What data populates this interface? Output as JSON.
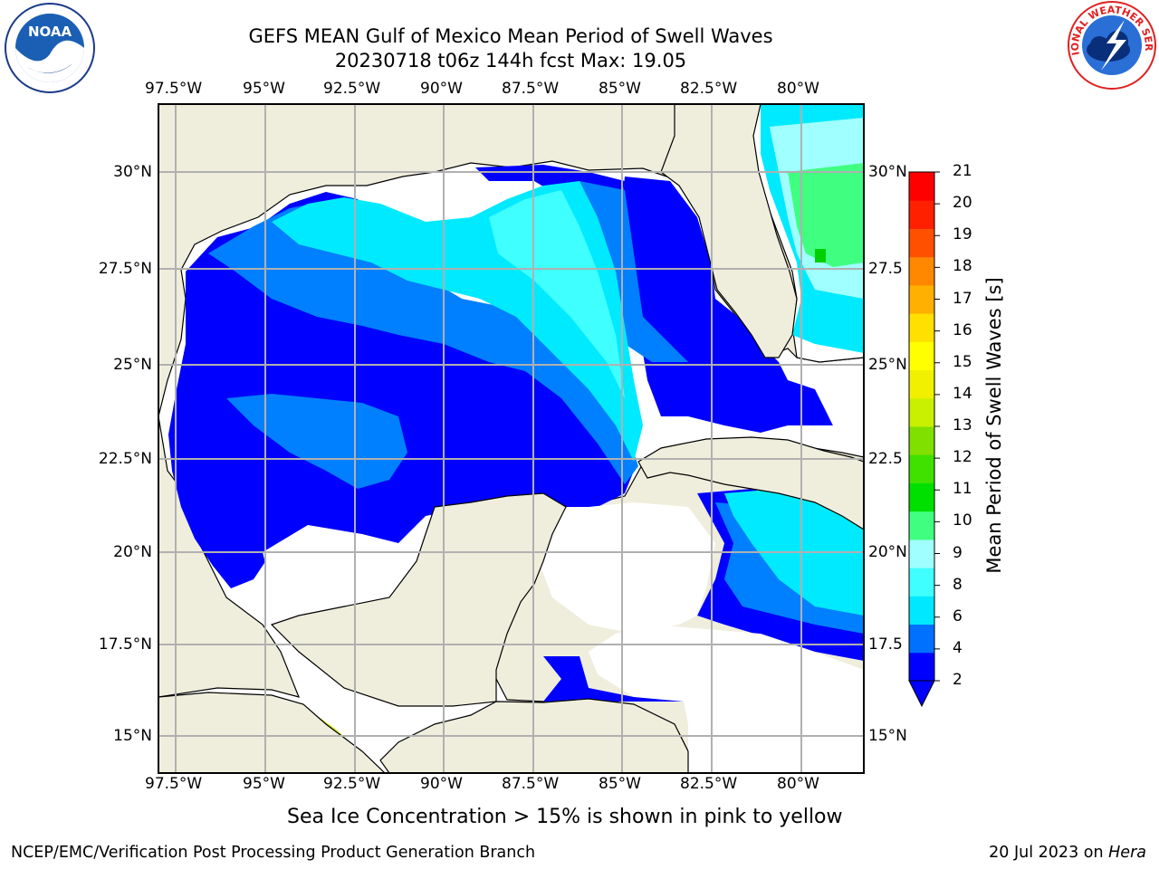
{
  "title": {
    "line1": "GEFS MEAN Gulf of Mexico Mean Period of Swell Waves",
    "line2": "20230718 t06z 144h fcst   Max: 19.05"
  },
  "map": {
    "lon_labels": [
      "97.5°W",
      "95°W",
      "92.5°W",
      "90°W",
      "87.5°W",
      "85°W",
      "82.5°W",
      "80°W"
    ],
    "lat_labels": [
      "30°N",
      "27.5°N",
      "25°N",
      "22.5°N",
      "20°N",
      "17.5°N",
      "15°N"
    ],
    "lat_labels_right": [
      "30°N",
      "27.5",
      "25°N",
      "22.5",
      "20°N",
      "17.5",
      "15°N"
    ],
    "colors": {
      "land": "#efeedd",
      "ocean_masked": "#ffffff",
      "grid": "#b0b0b0"
    }
  },
  "colorbar": {
    "title": "Mean Period of Swell Waves [s]",
    "ticks": [
      "21",
      "20",
      "19",
      "18",
      "17",
      "16",
      "15",
      "14",
      "13",
      "12",
      "11",
      "10",
      "9",
      "8",
      "6",
      "4",
      "2"
    ],
    "colors": [
      "#0000ff",
      "#0070ff",
      "#00e8ff",
      "#40ffff",
      "#a0ffff",
      "#40ff80",
      "#00e000",
      "#40e000",
      "#80e000",
      "#c8f000",
      "#f0f000",
      "#ffff00",
      "#ffe000",
      "#ffb000",
      "#ff8800",
      "#ff5000",
      "#ff2000",
      "#ff0000"
    ]
  },
  "caption": "Sea Ice Concentration > 15% is shown in pink to yellow",
  "footer": {
    "left": "NCEP/EMC/Verification Post Processing Product Generation Branch",
    "date": "20 Jul 2023 on",
    "host": "Hera"
  },
  "logos": {
    "noaa_text": "NOAA",
    "nws_text": "NATIONAL WEATHER SERVICE"
  }
}
